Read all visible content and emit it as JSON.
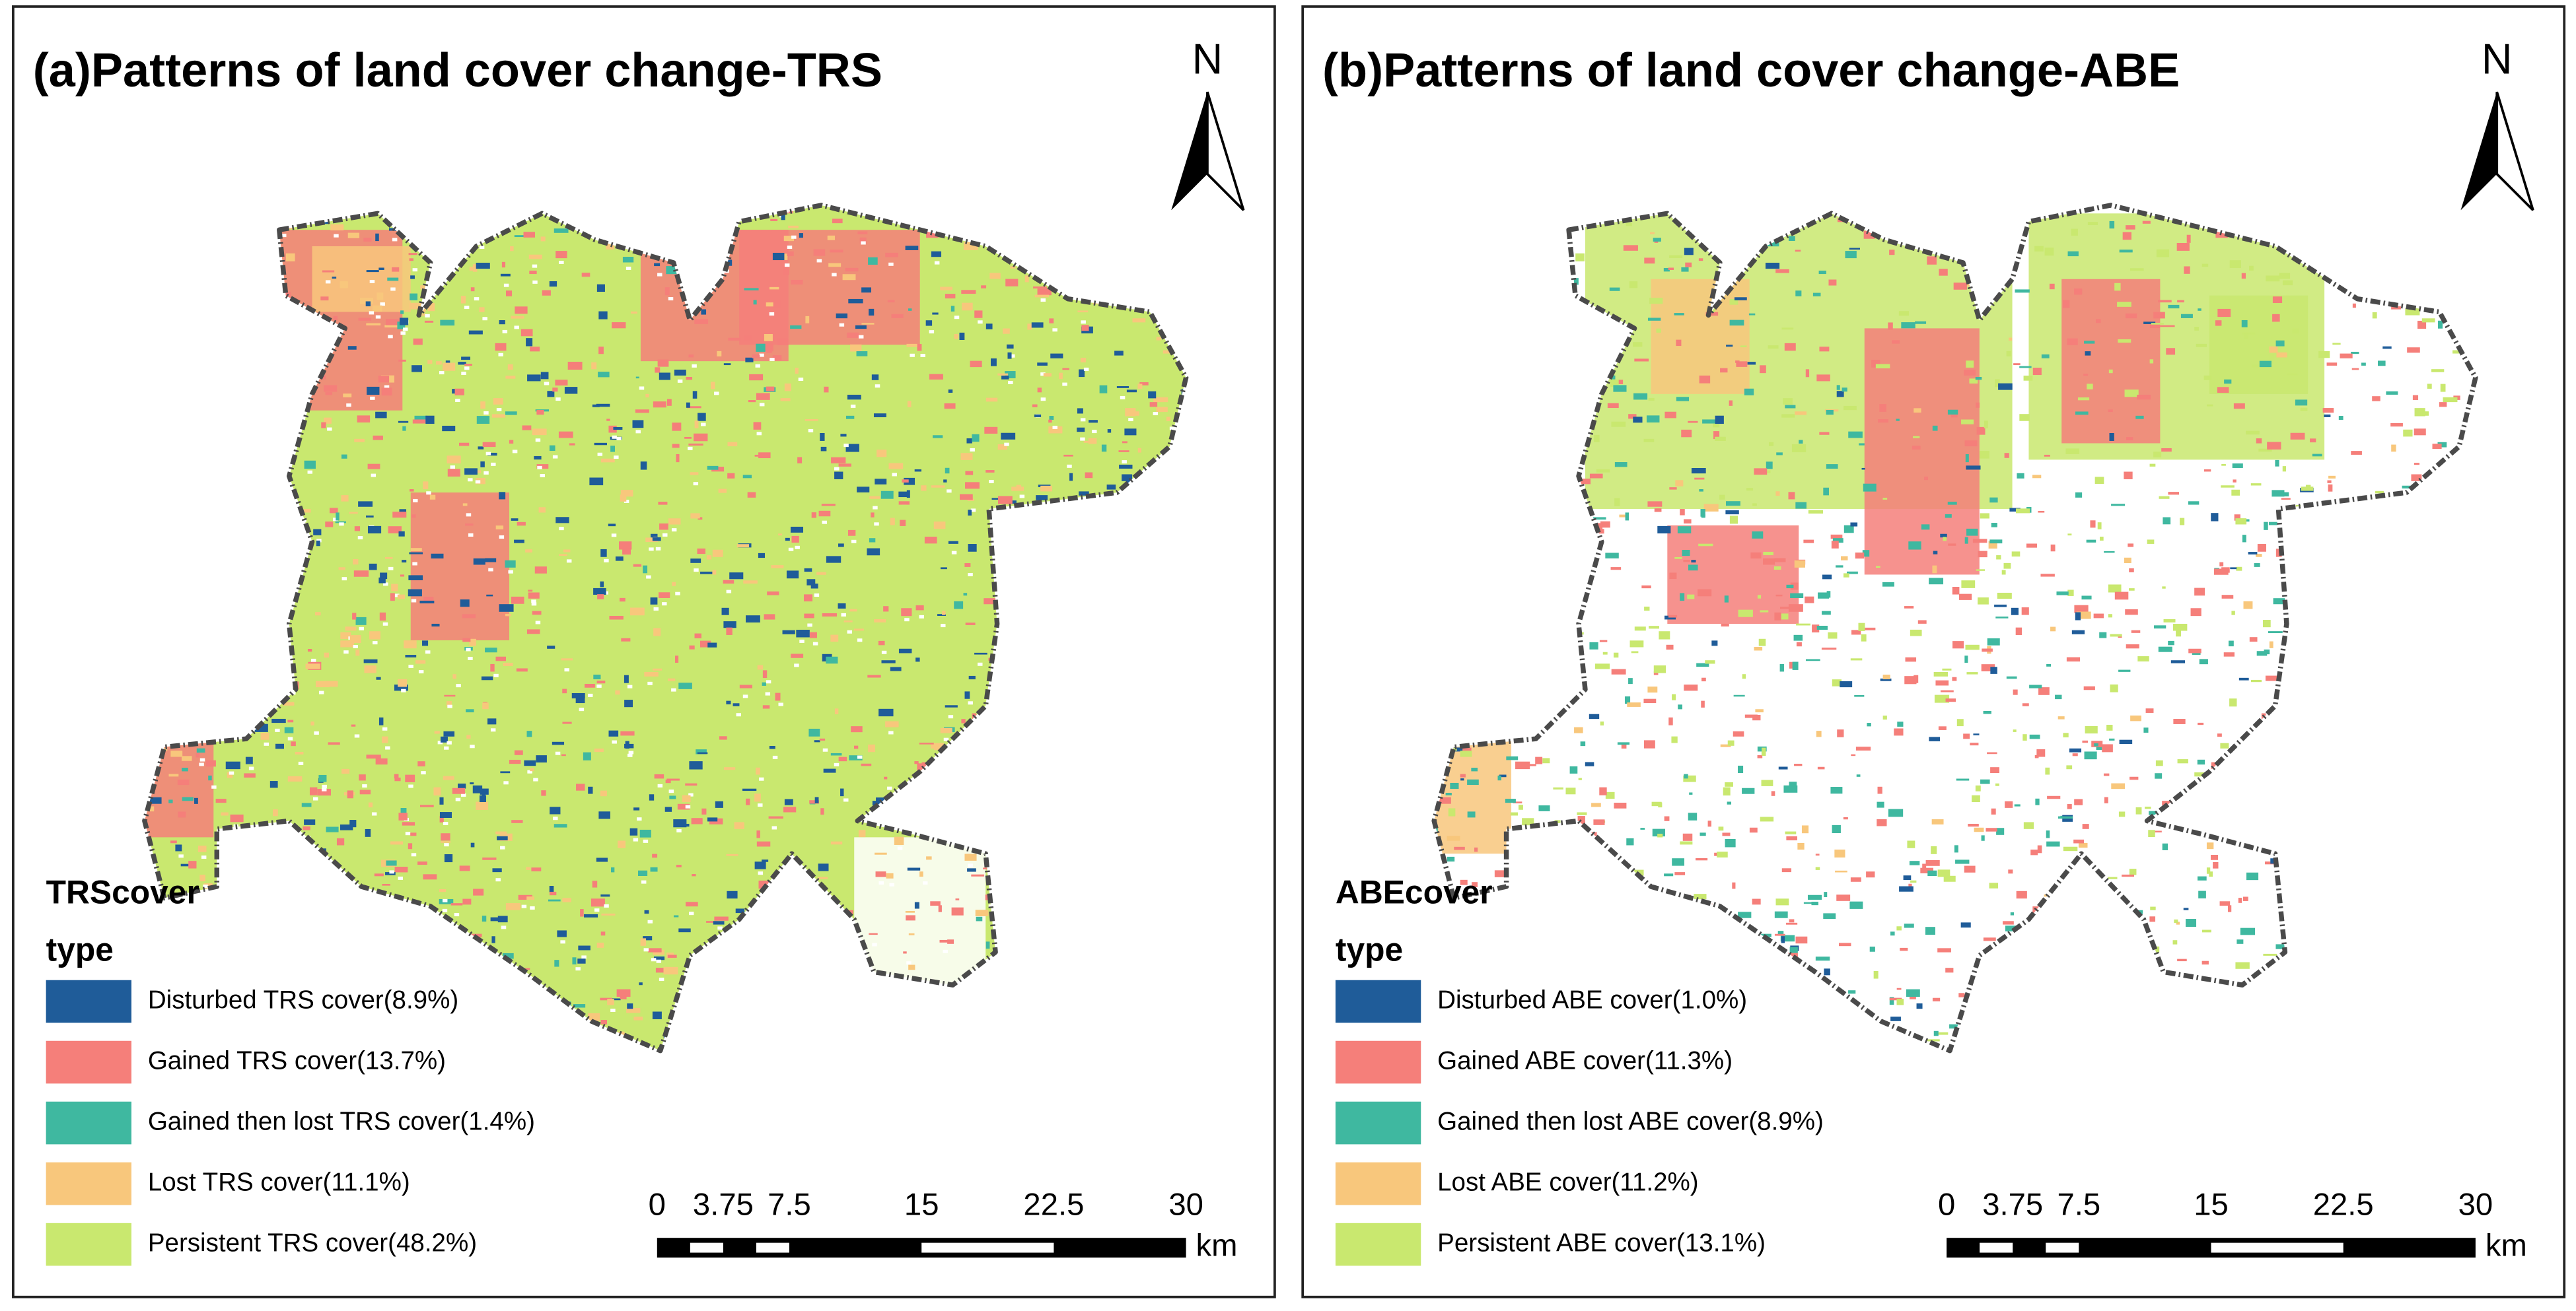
{
  "panels": [
    {
      "title": "(a)Patterns of land cover change-TRS",
      "north": "N",
      "legend": {
        "title": "TRScover",
        "subtitle": "type",
        "items": [
          {
            "label": "Disturbed TRS cover(8.9%)",
            "color": "#1f5c99"
          },
          {
            "label": "Gained TRS cover(13.7%)",
            "color": "#f57f7a"
          },
          {
            "label": "Gained then lost TRS cover(1.4%)",
            "color": "#3fb8a0"
          },
          {
            "label": "Lost TRS cover(11.1%)",
            "color": "#f8c77c"
          },
          {
            "label": "Persistent TRS cover(48.2%)",
            "color": "#c9e86f"
          }
        ]
      },
      "scale_bar": {
        "ticks": [
          0,
          3.75,
          7.5,
          15,
          22.5,
          30
        ],
        "unit": "km"
      }
    },
    {
      "title": "(b)Patterns of land cover change-ABE",
      "north": "N",
      "legend": {
        "title": "ABEcover",
        "subtitle": "type",
        "items": [
          {
            "label": "Disturbed ABE cover(1.0%)",
            "color": "#1f5c99"
          },
          {
            "label": "Gained ABE cover(11.3%)",
            "color": "#f57f7a"
          },
          {
            "label": "Gained then lost ABE cover(8.9%)",
            "color": "#3fb8a0"
          },
          {
            "label": "Lost ABE cover(11.2%)",
            "color": "#f8c77c"
          },
          {
            "label": "Persistent ABE cover(13.1%)",
            "color": "#c9e86f"
          }
        ]
      },
      "scale_bar": {
        "ticks": [
          0,
          3.75,
          7.5,
          15,
          22.5,
          30
        ],
        "unit": "km"
      }
    }
  ]
}
